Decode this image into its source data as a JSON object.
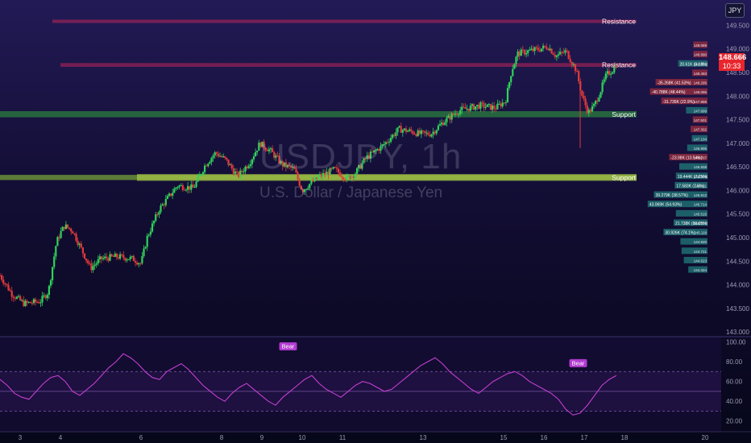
{
  "instrument": {
    "ticker_button": "JPY",
    "watermark_title": "USDJPY, 1h",
    "watermark_subtitle": "U.S. Dollar / Japanese Yen"
  },
  "current_price": {
    "value": "148.666",
    "countdown": "10:33",
    "color": "#e8262d"
  },
  "zones": [
    {
      "label": "Resistance",
      "kind": "resistance",
      "low": 149.55,
      "high": 149.62,
      "x_start": 3.8,
      "color": "#b0245a"
    },
    {
      "label": "Resistance",
      "kind": "resistance",
      "low": 148.62,
      "high": 148.7,
      "x_start": 4.0,
      "color": "#b0245a"
    },
    {
      "label": "Support",
      "kind": "support",
      "low": 147.55,
      "high": 147.68,
      "x_start": 2.0,
      "color": "#2d9a3c"
    },
    {
      "label": "Support",
      "kind": "support",
      "low": 146.22,
      "high": 146.33,
      "x_start": 2.0,
      "highlight_start": 5.9,
      "color": "#8cc43a"
    }
  ],
  "price_axis": {
    "labels": [
      "149.500",
      "149.000",
      "148.500",
      "148.000",
      "147.500",
      "147.000",
      "146.500",
      "146.000",
      "145.500",
      "145.000",
      "144.500",
      "144.000",
      "143.500",
      "143.000"
    ]
  },
  "rsi_axis": {
    "labels": [
      "100.00",
      "80.00",
      "60.00",
      "40.00",
      "20.00"
    ]
  },
  "time_axis": {
    "labels": [
      "3",
      "4",
      "6",
      "8",
      "9",
      "10",
      "11",
      "13",
      "15",
      "16",
      "17",
      "18",
      "20"
    ]
  },
  "volume_profile": [
    {
      "price": 149.089,
      "label": "",
      "vol": 0.05,
      "dir": "down"
    },
    {
      "price": 148.89,
      "label": "",
      "vol": 0.05,
      "dir": "down"
    },
    {
      "price": 148.692,
      "label": "20.61K (9.18%)",
      "vol": 0.32,
      "dir": "up"
    },
    {
      "price": 148.493,
      "label": "",
      "vol": 0.07,
      "dir": "down"
    },
    {
      "price": 148.295,
      "label": "-35.268K (41.53%)",
      "vol": 0.72,
      "dir": "down"
    },
    {
      "price": 148.096,
      "label": "-40.788K (48.44%)",
      "vol": 0.82,
      "dir": "down"
    },
    {
      "price": 147.898,
      "label": "-31.735K (22.9%)",
      "vol": 0.62,
      "dir": "down"
    },
    {
      "price": 147.699,
      "label": "",
      "vol": 0.18,
      "dir": "up"
    },
    {
      "price": 147.501,
      "label": "",
      "vol": 0.06,
      "dir": "down"
    },
    {
      "price": 147.302,
      "label": "",
      "vol": 0.1,
      "dir": "down"
    },
    {
      "price": 147.104,
      "label": "",
      "vol": 0.08,
      "dir": "up"
    },
    {
      "price": 146.905,
      "label": "",
      "vol": 0.16,
      "dir": "up"
    },
    {
      "price": 146.707,
      "label": "-23.98K (10.54%)",
      "vol": 0.48,
      "dir": "down"
    },
    {
      "price": 146.508,
      "label": "",
      "vol": 0.3,
      "dir": "up"
    },
    {
      "price": 146.309,
      "label": "19.444K (7.25%)",
      "vol": 0.36,
      "dir": "up"
    },
    {
      "price": 146.111,
      "label": "17.583K (7.5%)",
      "vol": 0.38,
      "dir": "up"
    },
    {
      "price": 145.912,
      "label": "39.279K (38.57%)",
      "vol": 0.75,
      "dir": "up"
    },
    {
      "price": 145.714,
      "label": "43.069K (54.93%)",
      "vol": 0.86,
      "dir": "up"
    },
    {
      "price": 145.515,
      "label": "",
      "vol": 0.36,
      "dir": "up"
    },
    {
      "price": 145.317,
      "label": "21.738K (86.05%)",
      "vol": 0.4,
      "dir": "up"
    },
    {
      "price": 145.118,
      "label": "30.926K (74.1%)",
      "vol": 0.58,
      "dir": "up"
    },
    {
      "price": 144.92,
      "label": "",
      "vol": 0.28,
      "dir": "up"
    },
    {
      "price": 144.721,
      "label": "",
      "vol": 0.26,
      "dir": "up"
    },
    {
      "price": 144.523,
      "label": "",
      "vol": 0.22,
      "dir": "up"
    },
    {
      "price": 144.324,
      "label": "",
      "vol": 0.14,
      "dir": "up"
    }
  ],
  "chart_data": {
    "type": "candlestick",
    "title": "USDJPY, 1h",
    "x_domain": [
      2.5,
      20.4
    ],
    "price_range": [
      142.9,
      149.9
    ],
    "anchors": [
      [
        2.5,
        144.2
      ],
      [
        2.8,
        143.8
      ],
      [
        3.1,
        143.6
      ],
      [
        3.5,
        143.65
      ],
      [
        3.7,
        143.85
      ],
      [
        3.9,
        144.9
      ],
      [
        4.0,
        145.1
      ],
      [
        4.1,
        145.25
      ],
      [
        4.3,
        145.15
      ],
      [
        4.55,
        144.7
      ],
      [
        4.75,
        144.35
      ],
      [
        5.0,
        144.55
      ],
      [
        5.4,
        144.6
      ],
      [
        5.8,
        144.55
      ],
      [
        6.0,
        144.45
      ],
      [
        6.15,
        145.0
      ],
      [
        6.45,
        145.6
      ],
      [
        6.9,
        146.1
      ],
      [
        7.3,
        146.05
      ],
      [
        7.6,
        146.55
      ],
      [
        7.85,
        146.8
      ],
      [
        8.1,
        146.65
      ],
      [
        8.4,
        146.3
      ],
      [
        8.7,
        146.6
      ],
      [
        8.95,
        147.0
      ],
      [
        9.2,
        146.85
      ],
      [
        9.5,
        146.55
      ],
      [
        9.8,
        146.45
      ],
      [
        10.0,
        146.0
      ],
      [
        10.2,
        146.15
      ],
      [
        10.45,
        146.3
      ],
      [
        10.8,
        146.45
      ],
      [
        11.1,
        146.25
      ],
      [
        11.3,
        146.35
      ],
      [
        11.6,
        146.7
      ],
      [
        12.0,
        146.95
      ],
      [
        12.4,
        147.3
      ],
      [
        12.7,
        147.25
      ],
      [
        12.9,
        147.2
      ],
      [
        13.2,
        147.2
      ],
      [
        13.5,
        147.45
      ],
      [
        13.9,
        147.7
      ],
      [
        14.4,
        147.8
      ],
      [
        14.8,
        147.75
      ],
      [
        15.05,
        147.9
      ],
      [
        15.2,
        148.55
      ],
      [
        15.35,
        148.9
      ],
      [
        15.6,
        148.95
      ],
      [
        15.9,
        149.0
      ],
      [
        16.1,
        149.05
      ],
      [
        16.3,
        148.85
      ],
      [
        16.55,
        148.95
      ],
      [
        16.8,
        148.55
      ],
      [
        16.95,
        148.0
      ],
      [
        17.1,
        147.65
      ],
      [
        17.25,
        147.8
      ],
      [
        17.4,
        148.1
      ],
      [
        17.55,
        148.45
      ],
      [
        17.7,
        148.55
      ],
      [
        17.8,
        148.68
      ]
    ],
    "rsi": [
      62,
      56,
      48,
      44,
      42,
      50,
      58,
      64,
      66,
      60,
      50,
      46,
      52,
      58,
      66,
      74,
      80,
      88,
      84,
      78,
      70,
      64,
      62,
      70,
      74,
      78,
      72,
      64,
      56,
      50,
      44,
      40,
      48,
      54,
      58,
      52,
      46,
      40,
      36,
      44,
      50,
      56,
      62,
      66,
      58,
      52,
      48,
      44,
      50,
      56,
      60,
      58,
      54,
      50,
      52,
      58,
      64,
      70,
      76,
      80,
      84,
      78,
      70,
      64,
      58,
      52,
      48,
      54,
      60,
      64,
      68,
      70,
      66,
      60,
      56,
      52,
      48,
      42,
      32,
      26,
      28,
      36,
      46,
      56,
      62,
      66
    ],
    "rsi_levels": [
      70,
      50,
      30
    ],
    "rsi_range": [
      10,
      102
    ],
    "bear_labels": [
      {
        "text": "Bear",
        "x": 9.65,
        "rsi": 89
      },
      {
        "text": "Bear",
        "x": 16.85,
        "rsi": 72
      }
    ],
    "day_ticks": [
      3,
      4,
      6,
      8,
      9,
      10,
      11,
      13,
      15,
      16,
      17,
      18,
      20
    ]
  }
}
